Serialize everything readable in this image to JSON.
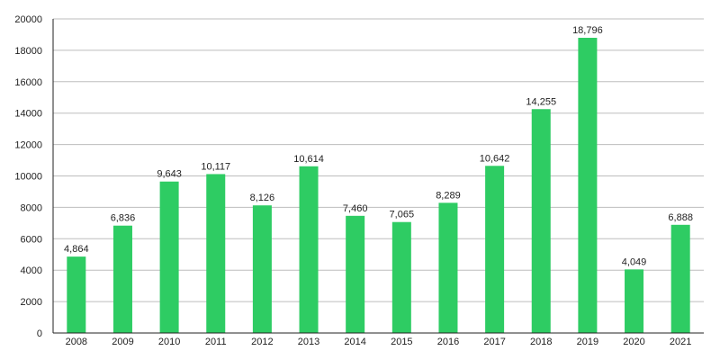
{
  "chart_data": {
    "type": "bar",
    "categories": [
      "2008",
      "2009",
      "2010",
      "2011",
      "2012",
      "2013",
      "2014",
      "2015",
      "2016",
      "2017",
      "2018",
      "2019",
      "2020",
      "2021"
    ],
    "values": [
      4864,
      6836,
      9643,
      10117,
      8126,
      10614,
      7460,
      7065,
      8289,
      10642,
      14255,
      18796,
      4049,
      6888
    ],
    "data_labels": [
      "4,864",
      "6,836",
      "9,643",
      "10,117",
      "8,126",
      "10,614",
      "7,460",
      "7,065",
      "8,289",
      "10,642",
      "14,255",
      "18,796",
      "4,049",
      "6,888"
    ],
    "y_ticks": [
      0,
      2000,
      4000,
      6000,
      8000,
      10000,
      12000,
      14000,
      16000,
      18000,
      20000
    ],
    "ylim": [
      0,
      20000
    ],
    "grid": true,
    "legend": "none",
    "title": "",
    "xlabel": "",
    "ylabel": "",
    "colors": {
      "bar": "#2ecc63",
      "grid": "#bdbdbd",
      "axis": "#222222"
    }
  }
}
